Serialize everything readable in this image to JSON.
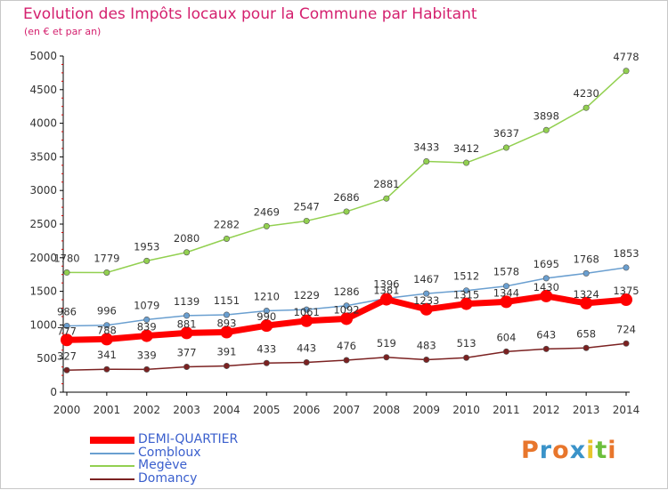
{
  "title": "Evolution des Impôts locaux pour la Commune par Habitant",
  "subtitle": "(en € et par an)",
  "logo": {
    "letters": [
      "P",
      "r",
      "o",
      "x",
      "i",
      "t",
      "i"
    ],
    "colors": [
      "#e8762c",
      "#3a93c9",
      "#e8762c",
      "#3a93c9",
      "#e8c52c",
      "#6cbf3c",
      "#e8762c"
    ]
  },
  "chart_data": {
    "type": "line",
    "x": [
      "2000",
      "2001",
      "2002",
      "2003",
      "2004",
      "2005",
      "2006",
      "2007",
      "2008",
      "2009",
      "2010",
      "2011",
      "2012",
      "2013",
      "2014"
    ],
    "ylim": [
      0,
      5000
    ],
    "yticks": [
      "0",
      "500",
      "1000",
      "1500",
      "2000",
      "2500",
      "3000",
      "3500",
      "4000",
      "4500",
      "5000"
    ],
    "legend_position": "bottom-left",
    "grid": false,
    "series": [
      {
        "name": "DEMI-QUARTIER",
        "color": "#ff0000",
        "values": [
          777,
          788,
          839,
          881,
          893,
          990,
          1061,
          1092,
          1381,
          1233,
          1315,
          1344,
          1430,
          1324,
          1375
        ]
      },
      {
        "name": "Combloux",
        "color": "#6a9fd0",
        "values": [
          986,
          996,
          1079,
          1139,
          1151,
          1210,
          1229,
          1286,
          1396,
          1467,
          1512,
          1578,
          1695,
          1768,
          1853
        ]
      },
      {
        "name": "Megève",
        "color": "#92d050",
        "values": [
          1780,
          1779,
          1953,
          2080,
          2282,
          2469,
          2547,
          2686,
          2881,
          3433,
          3412,
          3637,
          3898,
          4230,
          4778
        ]
      },
      {
        "name": "Domancy",
        "color": "#7b2121",
        "values": [
          327,
          341,
          339,
          377,
          391,
          433,
          443,
          476,
          519,
          483,
          513,
          604,
          643,
          658,
          724
        ]
      }
    ]
  }
}
